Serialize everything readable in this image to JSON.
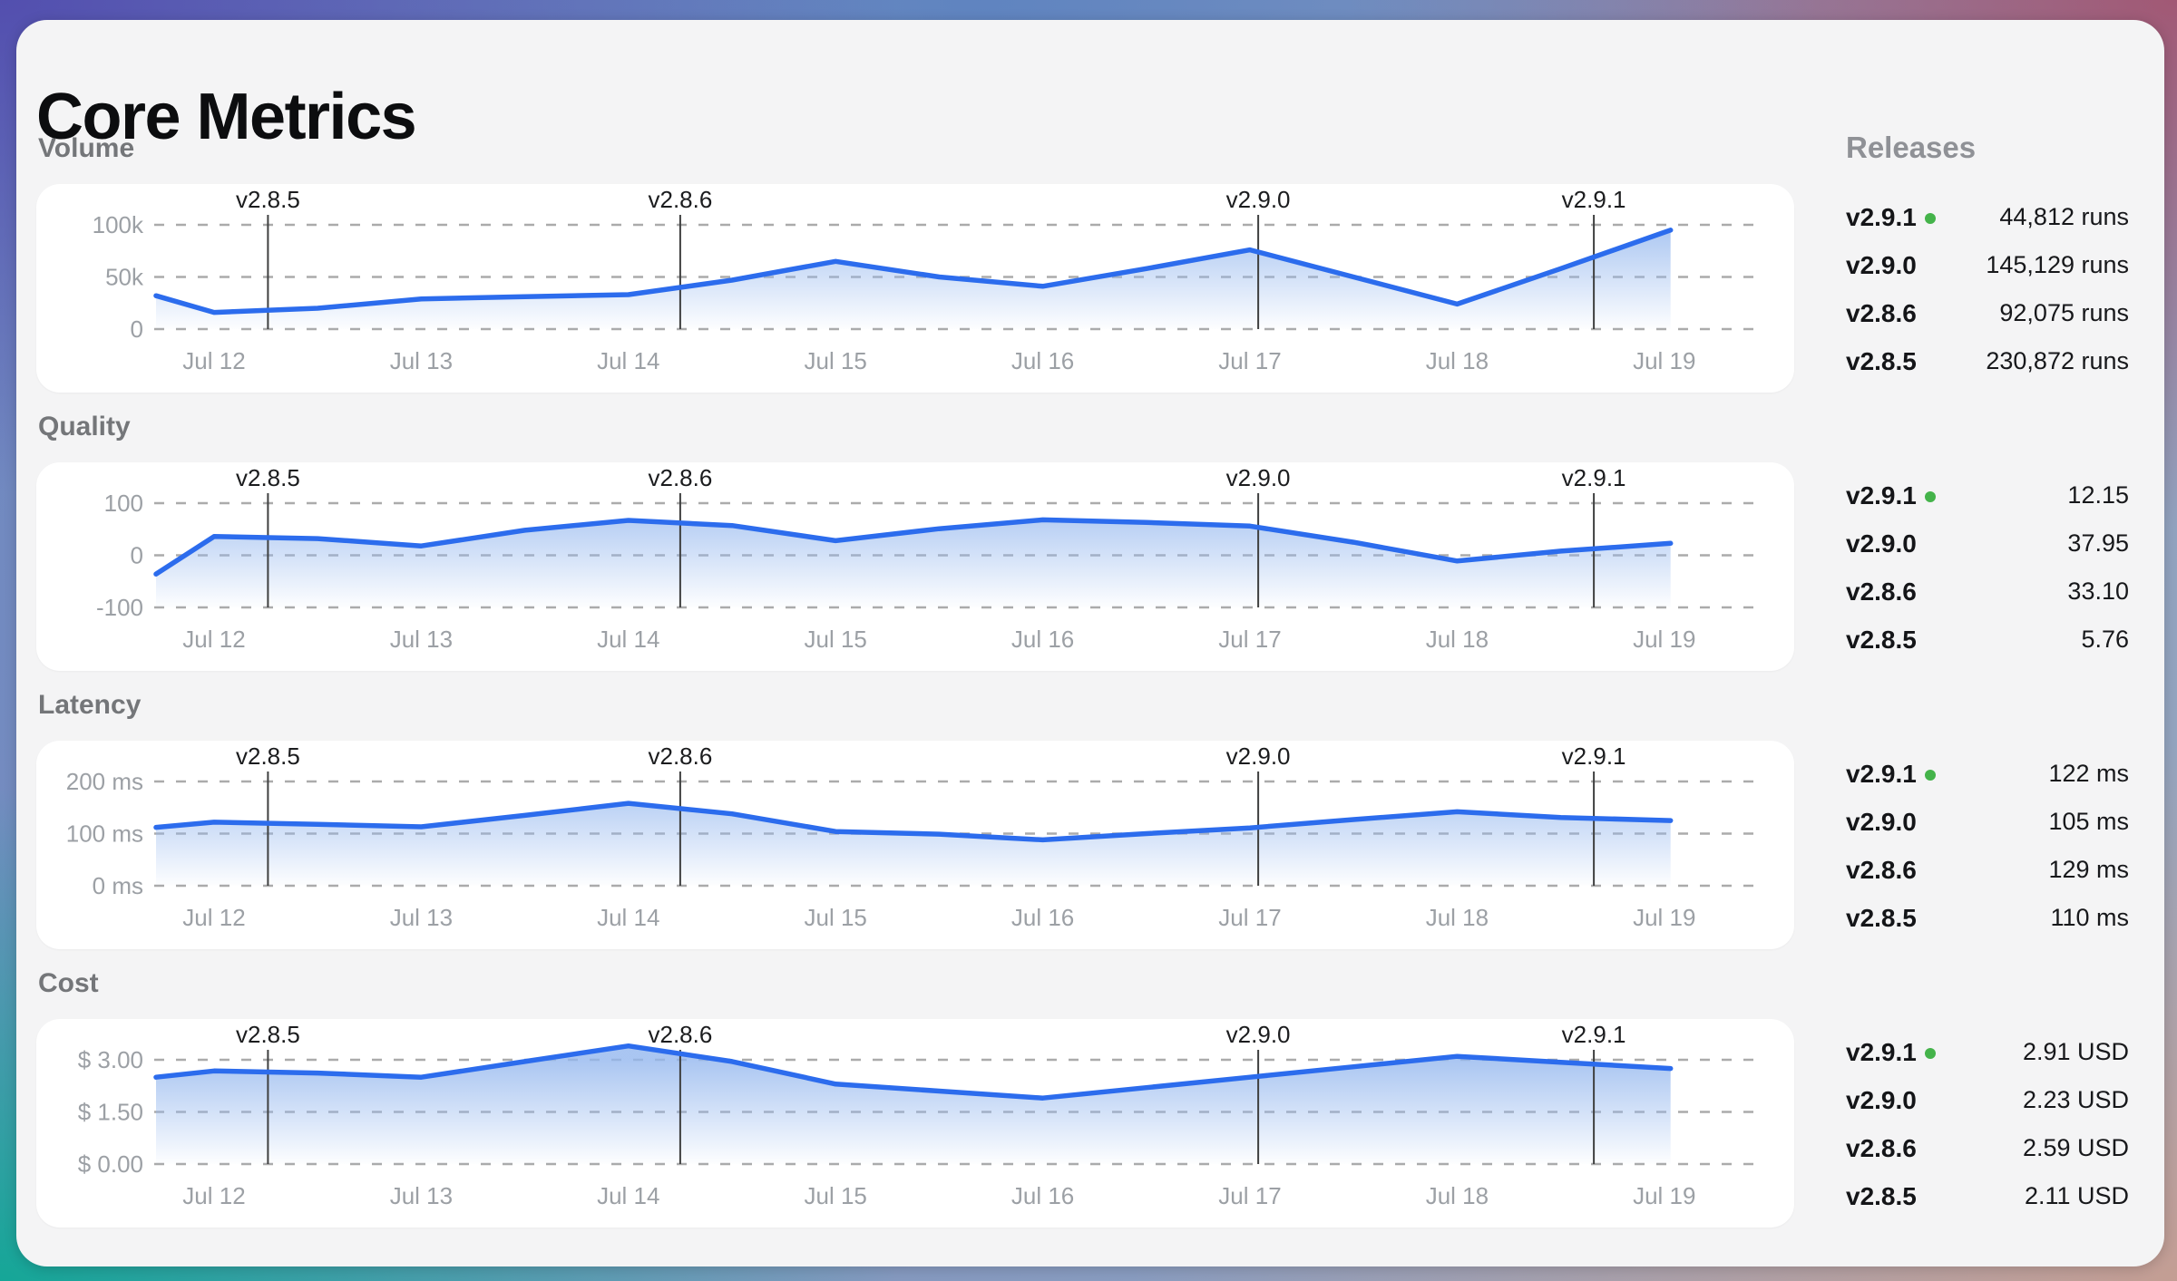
{
  "title": "Core Metrics",
  "sidebar": {
    "heading": "Releases"
  },
  "colors": {
    "line": "#2c6ced",
    "fill": "#94b7ee",
    "grid": "#ababab",
    "tick_text": "#9ca0a5",
    "marker_line": "#3f4040",
    "marker_text": "#1b1c1e",
    "current_dot": "#44b34a",
    "card_bg": "#f4f4f5",
    "panel_bg": "#ffffff",
    "frame_gradient": [
      "#524dae",
      "#5d83c0",
      "#a25672",
      "#12a796",
      "#c59d92"
    ]
  },
  "x_axis": {
    "tick_labels": [
      "Jul 12",
      "Jul 13",
      "Jul 14",
      "Jul 15",
      "Jul 16",
      "Jul 17",
      "Jul 18",
      "Jul 19"
    ],
    "tick_days": [
      12,
      13,
      14,
      15,
      16,
      17,
      18,
      19
    ]
  },
  "release_markers": [
    {
      "label": "v2.8.5",
      "day": 12.26
    },
    {
      "label": "v2.8.6",
      "day": 14.25
    },
    {
      "label": "v2.9.0",
      "day": 17.04
    },
    {
      "label": "v2.9.1",
      "day": 18.66
    }
  ],
  "chart_data": [
    {
      "type": "area",
      "title": "Volume",
      "unit": "runs",
      "ylim": [
        0,
        100000
      ],
      "y_ticks": [
        {
          "value": 100000,
          "label": "100k"
        },
        {
          "value": 50000,
          "label": "50k"
        },
        {
          "value": 0,
          "label": "0"
        }
      ],
      "x": [
        11.72,
        12,
        12.5,
        13,
        13.5,
        14,
        14.5,
        15,
        15.5,
        16,
        16.5,
        17,
        17.5,
        18,
        18.5,
        19.03
      ],
      "y": [
        32000,
        16000,
        20000,
        29000,
        31000,
        33000,
        47000,
        65000,
        50000,
        41000,
        58000,
        76000,
        50000,
        24000,
        58000,
        95000
      ],
      "releases": [
        {
          "version": "v2.9.1",
          "value": "44,812 runs",
          "current": true
        },
        {
          "version": "v2.9.0",
          "value": "145,129 runs",
          "current": false
        },
        {
          "version": "v2.8.6",
          "value": "92,075 runs",
          "current": false
        },
        {
          "version": "v2.8.5",
          "value": "230,872 runs",
          "current": false
        }
      ]
    },
    {
      "type": "area",
      "title": "Quality",
      "unit": "",
      "ylim": [
        -100,
        100
      ],
      "y_ticks": [
        {
          "value": 100,
          "label": "100"
        },
        {
          "value": 0,
          "label": "0"
        },
        {
          "value": -100,
          "label": "-100"
        }
      ],
      "x": [
        11.72,
        12,
        12.5,
        13,
        13.5,
        14,
        14.5,
        15,
        15.5,
        16,
        16.5,
        17,
        17.5,
        18,
        18.5,
        19.03
      ],
      "y": [
        -36,
        36,
        32,
        18,
        48,
        67,
        57,
        28,
        51,
        68,
        63,
        56,
        25,
        -11,
        8,
        23
      ],
      "releases": [
        {
          "version": "v2.9.1",
          "value": "12.15",
          "current": true
        },
        {
          "version": "v2.9.0",
          "value": "37.95",
          "current": false
        },
        {
          "version": "v2.8.6",
          "value": "33.10",
          "current": false
        },
        {
          "version": "v2.8.5",
          "value": "5.76",
          "current": false
        }
      ]
    },
    {
      "type": "area",
      "title": "Latency",
      "unit": "ms",
      "ylim": [
        0,
        200
      ],
      "y_ticks": [
        {
          "value": 200,
          "label": "200 ms"
        },
        {
          "value": 100,
          "label": "100 ms"
        },
        {
          "value": 0,
          "label": "0 ms"
        }
      ],
      "x": [
        11.72,
        12,
        12.5,
        13,
        13.5,
        14,
        14.5,
        15,
        15.5,
        16,
        16.5,
        17,
        17.5,
        18,
        18.5,
        19.03
      ],
      "y": [
        112,
        122,
        118,
        113,
        135,
        158,
        138,
        104,
        99,
        88,
        100,
        111,
        127,
        142,
        131,
        125
      ],
      "releases": [
        {
          "version": "v2.9.1",
          "value": "122 ms",
          "current": true
        },
        {
          "version": "v2.9.0",
          "value": "105 ms",
          "current": false
        },
        {
          "version": "v2.8.6",
          "value": "129 ms",
          "current": false
        },
        {
          "version": "v2.8.5",
          "value": "110 ms",
          "current": false
        }
      ]
    },
    {
      "type": "area",
      "title": "Cost",
      "unit": "USD",
      "ylim": [
        0,
        3
      ],
      "y_ticks": [
        {
          "value": 3,
          "label": "$ 3.00"
        },
        {
          "value": 1.5,
          "label": "$ 1.50"
        },
        {
          "value": 0,
          "label": "$ 0.00"
        }
      ],
      "x": [
        11.72,
        12,
        12.5,
        13,
        13.5,
        14,
        14.5,
        15,
        15.5,
        16,
        16.5,
        17,
        17.5,
        18,
        18.5,
        19.03
      ],
      "y": [
        2.5,
        2.68,
        2.62,
        2.5,
        2.95,
        3.4,
        2.95,
        2.3,
        2.1,
        1.9,
        2.2,
        2.5,
        2.8,
        3.1,
        2.93,
        2.75
      ],
      "releases": [
        {
          "version": "v2.9.1",
          "value": "2.91 USD",
          "current": true
        },
        {
          "version": "v2.9.0",
          "value": "2.23 USD",
          "current": false
        },
        {
          "version": "v2.8.6",
          "value": "2.59 USD",
          "current": false
        },
        {
          "version": "v2.8.5",
          "value": "2.11 USD",
          "current": false
        }
      ]
    }
  ]
}
